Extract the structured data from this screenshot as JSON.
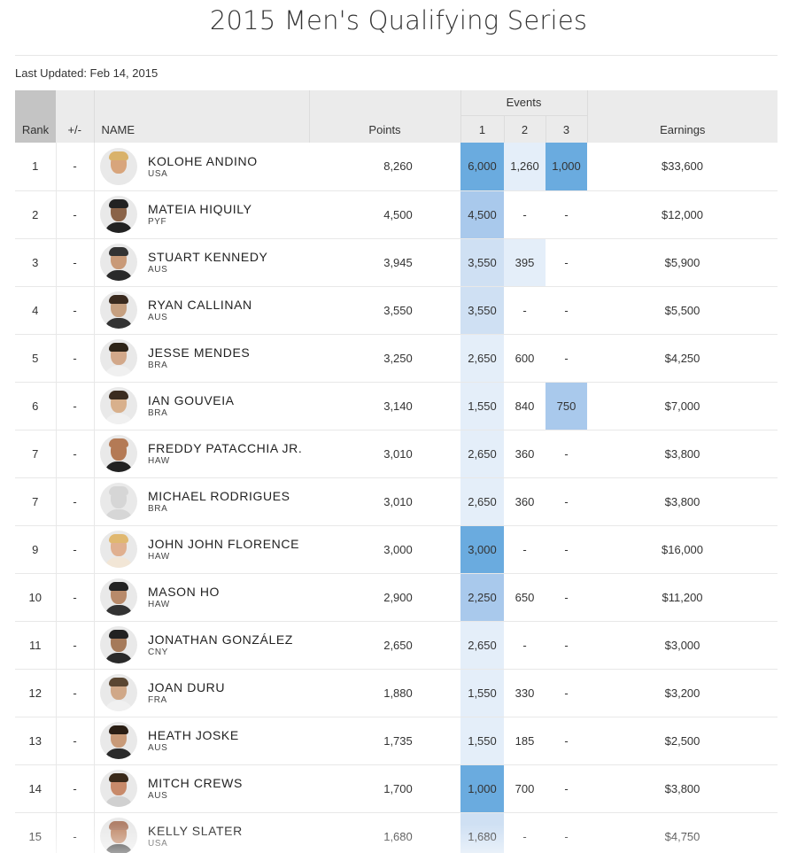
{
  "page": {
    "title": "2015 Men's Qualifying Series",
    "last_updated": "Last Updated: Feb 14, 2015"
  },
  "table": {
    "headers": {
      "rank": "Rank",
      "plus_minus": "+/-",
      "name": "NAME",
      "points": "Points",
      "events": "Events",
      "event_1": "1",
      "event_2": "2",
      "event_3": "3",
      "earnings": "Earnings"
    },
    "heat_colors": {
      "none": "transparent",
      "light": "#e4eef9",
      "medium_light": "#cfe0f3",
      "medium": "#a9c9ec",
      "strong": "#6aabdf"
    },
    "rows": [
      {
        "rank": "1",
        "change": "-",
        "name": "KOLOHE ANDINO",
        "country": "USA",
        "points": "8,260",
        "e1": "6,000",
        "e1_level": 4,
        "e2": "1,260",
        "e2_level": 1,
        "e3": "1,000",
        "e3_level": 4,
        "earnings": "$33,600"
      },
      {
        "rank": "2",
        "change": "-",
        "name": "MATEIA HIQUILY",
        "country": "PYF",
        "points": "4,500",
        "e1": "4,500",
        "e1_level": 3,
        "e2": "-",
        "e2_level": 0,
        "e3": "-",
        "e3_level": 0,
        "earnings": "$12,000"
      },
      {
        "rank": "3",
        "change": "-",
        "name": "STUART KENNEDY",
        "country": "AUS",
        "points": "3,945",
        "e1": "3,550",
        "e1_level": 2,
        "e2": "395",
        "e2_level": 1,
        "e3": "-",
        "e3_level": 0,
        "earnings": "$5,900"
      },
      {
        "rank": "4",
        "change": "-",
        "name": "RYAN CALLINAN",
        "country": "AUS",
        "points": "3,550",
        "e1": "3,550",
        "e1_level": 2,
        "e2": "-",
        "e2_level": 0,
        "e3": "-",
        "e3_level": 0,
        "earnings": "$5,500"
      },
      {
        "rank": "5",
        "change": "-",
        "name": "JESSE MENDES",
        "country": "BRA",
        "points": "3,250",
        "e1": "2,650",
        "e1_level": 1,
        "e2": "600",
        "e2_level": 0,
        "e3": "-",
        "e3_level": 0,
        "earnings": "$4,250"
      },
      {
        "rank": "6",
        "change": "-",
        "name": "IAN GOUVEIA",
        "country": "BRA",
        "points": "3,140",
        "e1": "1,550",
        "e1_level": 1,
        "e2": "840",
        "e2_level": 0,
        "e3": "750",
        "e3_level": 3,
        "earnings": "$7,000"
      },
      {
        "rank": "7",
        "change": "-",
        "name": "FREDDY PATACCHIA JR.",
        "country": "HAW",
        "points": "3,010",
        "e1": "2,650",
        "e1_level": 1,
        "e2": "360",
        "e2_level": 0,
        "e3": "-",
        "e3_level": 0,
        "earnings": "$3,800"
      },
      {
        "rank": "7",
        "change": "-",
        "name": "MICHAEL RODRIGUES",
        "country": "BRA",
        "points": "3,010",
        "e1": "2,650",
        "e1_level": 1,
        "e2": "360",
        "e2_level": 0,
        "e3": "-",
        "e3_level": 0,
        "earnings": "$3,800"
      },
      {
        "rank": "9",
        "change": "-",
        "name": "JOHN JOHN FLORENCE",
        "country": "HAW",
        "points": "3,000",
        "e1": "3,000",
        "e1_level": 4,
        "e2": "-",
        "e2_level": 0,
        "e3": "-",
        "e3_level": 0,
        "earnings": "$16,000"
      },
      {
        "rank": "10",
        "change": "-",
        "name": "MASON HO",
        "country": "HAW",
        "points": "2,900",
        "e1": "2,250",
        "e1_level": 3,
        "e2": "650",
        "e2_level": 0,
        "e3": "-",
        "e3_level": 0,
        "earnings": "$11,200"
      },
      {
        "rank": "11",
        "change": "-",
        "name": "JONATHAN GONZÁLEZ",
        "country": "CNY",
        "points": "2,650",
        "e1": "2,650",
        "e1_level": 1,
        "e2": "-",
        "e2_level": 0,
        "e3": "-",
        "e3_level": 0,
        "earnings": "$3,000"
      },
      {
        "rank": "12",
        "change": "-",
        "name": "JOAN DURU",
        "country": "FRA",
        "points": "1,880",
        "e1": "1,550",
        "e1_level": 1,
        "e2": "330",
        "e2_level": 0,
        "e3": "-",
        "e3_level": 0,
        "earnings": "$3,200"
      },
      {
        "rank": "13",
        "change": "-",
        "name": "HEATH JOSKE",
        "country": "AUS",
        "points": "1,735",
        "e1": "1,550",
        "e1_level": 1,
        "e2": "185",
        "e2_level": 0,
        "e3": "-",
        "e3_level": 0,
        "earnings": "$2,500"
      },
      {
        "rank": "14",
        "change": "-",
        "name": "MITCH CREWS",
        "country": "AUS",
        "points": "1,700",
        "e1": "1,000",
        "e1_level": 4,
        "e2": "700",
        "e2_level": 0,
        "e3": "-",
        "e3_level": 0,
        "earnings": "$3,800"
      },
      {
        "rank": "15",
        "change": "-",
        "name": "KELLY SLATER",
        "country": "USA",
        "points": "1,680",
        "e1": "1,680",
        "e1_level": 2,
        "e2": "-",
        "e2_level": 0,
        "e3": "-",
        "e3_level": 0,
        "earnings": "$4,750"
      }
    ],
    "avatars": [
      {
        "icon": "surfer-photo-icon",
        "hair": "#d9b26a",
        "skin": "#d8a57c",
        "shirt": "#e8e8e8"
      },
      {
        "icon": "surfer-photo-icon",
        "hair": "#222222",
        "skin": "#8a6348",
        "shirt": "#222222"
      },
      {
        "icon": "surfer-photo-icon",
        "hair": "#333333",
        "skin": "#c99a78",
        "shirt": "#2a2a2a"
      },
      {
        "icon": "surfer-photo-icon",
        "hair": "#3a2a1e",
        "skin": "#c6a080",
        "shirt": "#333333"
      },
      {
        "icon": "surfer-photo-icon",
        "hair": "#2e2418",
        "skin": "#d2a88a",
        "shirt": "#f0f0f0"
      },
      {
        "icon": "surfer-photo-icon",
        "hair": "#3b2c20",
        "skin": "#d8b08c",
        "shirt": "#f0f0f0"
      },
      {
        "icon": "surfer-photo-icon",
        "hair": "#b47a55",
        "skin": "#b47a55",
        "shirt": "#222222"
      },
      {
        "icon": "placeholder-avatar-icon",
        "hair": "#d6d6d6",
        "skin": "#d6d6d6",
        "shirt": "#d6d6d6"
      },
      {
        "icon": "surfer-photo-icon",
        "hair": "#e0b870",
        "skin": "#e0b090",
        "shirt": "#f2e6d6"
      },
      {
        "icon": "surfer-photo-icon",
        "hair": "#222222",
        "skin": "#b88a6a",
        "shirt": "#333333"
      },
      {
        "icon": "surfer-photo-icon",
        "hair": "#222222",
        "skin": "#a57a5a",
        "shirt": "#2a2a2a"
      },
      {
        "icon": "surfer-photo-icon",
        "hair": "#5a4632",
        "skin": "#d0a888",
        "shirt": "#f0f0f0"
      },
      {
        "icon": "surfer-photo-icon",
        "hair": "#2a1e14",
        "skin": "#c89a78",
        "shirt": "#2a2a2a"
      },
      {
        "icon": "surfer-photo-icon",
        "hair": "#3a2a1a",
        "skin": "#c88a6a",
        "shirt": "#d0d0d0"
      },
      {
        "icon": "surfer-photo-icon",
        "hair": "#b0806a",
        "skin": "#c08a6a",
        "shirt": "#333333"
      }
    ]
  }
}
